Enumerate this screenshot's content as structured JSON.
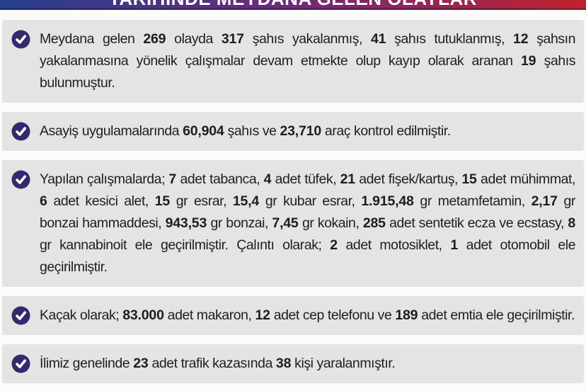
{
  "header": {
    "title": "TARİHİNDE MEYDANA GELEN OLAYLAR"
  },
  "colors": {
    "banner-blue": "#24418e",
    "banner-purple": "#6f2a7d",
    "banner-red": "#c0232b",
    "page-bg": "#fbfbfa",
    "box-bg": "#e5e4e2",
    "icon-bg": "#322a6e",
    "icon-check": "#ffffff",
    "text": "#1e1e1c"
  },
  "icons": {
    "bullet": "check-circle-icon"
  },
  "bullets": [
    {
      "segments": [
        {
          "t": "Meydana gelen ",
          "b": false
        },
        {
          "t": "269",
          "b": true
        },
        {
          "t": " olayda ",
          "b": false
        },
        {
          "t": "317",
          "b": true
        },
        {
          "t": " şahıs yakalanmış, ",
          "b": false
        },
        {
          "t": "41",
          "b": true
        },
        {
          "t": " şahıs tutuklanmış, ",
          "b": false
        },
        {
          "t": "12",
          "b": true
        },
        {
          "t": " şahsın yakalanmasına yönelik çalışmalar devam etmekte olup kayıp olarak aranan ",
          "b": false
        },
        {
          "t": "19",
          "b": true
        },
        {
          "t": " şahıs bulunmuştur.",
          "b": false
        }
      ]
    },
    {
      "segments": [
        {
          "t": "Asayiş uygulamalarında ",
          "b": false
        },
        {
          "t": "60,904",
          "b": true
        },
        {
          "t": " şahıs ve ",
          "b": false
        },
        {
          "t": "23,710",
          "b": true
        },
        {
          "t": " araç kontrol edilmiştir.",
          "b": false
        }
      ]
    },
    {
      "segments": [
        {
          "t": "Yapılan çalışmalarda; ",
          "b": false
        },
        {
          "t": "7",
          "b": true
        },
        {
          "t": " adet tabanca, ",
          "b": false
        },
        {
          "t": "4",
          "b": true
        },
        {
          "t": " adet tüfek, ",
          "b": false
        },
        {
          "t": "21",
          "b": true
        },
        {
          "t": " adet fişek/kartuş, ",
          "b": false
        },
        {
          "t": "15",
          "b": true
        },
        {
          "t": " adet mühimmat, ",
          "b": false
        },
        {
          "t": "6",
          "b": true
        },
        {
          "t": " adet kesici alet, ",
          "b": false
        },
        {
          "t": "15",
          "b": true
        },
        {
          "t": " gr esrar, ",
          "b": false
        },
        {
          "t": "15,4",
          "b": true
        },
        {
          "t": " gr kubar esrar, ",
          "b": false
        },
        {
          "t": "1.915,48",
          "b": true
        },
        {
          "t": " gr metamfetamin, ",
          "b": false
        },
        {
          "t": "2,17",
          "b": true
        },
        {
          "t": " gr bonzai hammaddesi, ",
          "b": false
        },
        {
          "t": "943,53",
          "b": true
        },
        {
          "t": " gr bonzai, ",
          "b": false
        },
        {
          "t": "7,45",
          "b": true
        },
        {
          "t": " gr kokain, ",
          "b": false
        },
        {
          "t": "285",
          "b": true
        },
        {
          "t": " adet sentetik ecza ve ecstasy, ",
          "b": false
        },
        {
          "t": "8",
          "b": true
        },
        {
          "t": " gr kannabinoit ele geçirilmiştir. Çalıntı olarak; ",
          "b": false
        },
        {
          "t": "2",
          "b": true
        },
        {
          "t": " adet motosiklet, ",
          "b": false
        },
        {
          "t": "1",
          "b": true
        },
        {
          "t": " adet otomobil ele geçirilmiştir.",
          "b": false
        }
      ]
    },
    {
      "segments": [
        {
          "t": "Kaçak olarak; ",
          "b": false
        },
        {
          "t": "83.000",
          "b": true
        },
        {
          "t": " adet makaron, ",
          "b": false
        },
        {
          "t": "12",
          "b": true
        },
        {
          "t": " adet cep telefonu ve ",
          "b": false
        },
        {
          "t": "189",
          "b": true
        },
        {
          "t": " adet emtia ele geçirilmiştir.",
          "b": false
        }
      ]
    },
    {
      "segments": [
        {
          "t": "İlimiz genelinde ",
          "b": false
        },
        {
          "t": "23",
          "b": true
        },
        {
          "t": " adet trafik kazasında ",
          "b": false
        },
        {
          "t": "38",
          "b": true
        },
        {
          "t": " kişi yaralanmıştır.",
          "b": false
        }
      ]
    }
  ]
}
